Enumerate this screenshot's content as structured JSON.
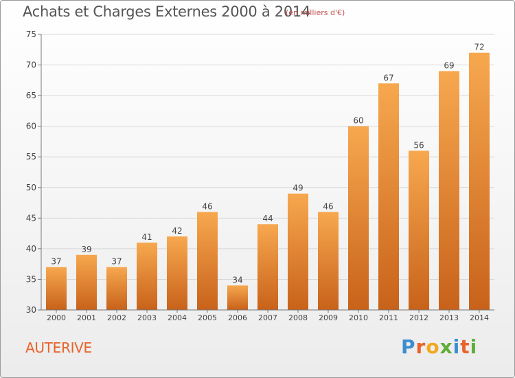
{
  "header": {
    "title": "Achats et Charges Externes 2000 à 2014",
    "subtitle": "(en milliers d'€)"
  },
  "footer": {
    "place": "AUTERIVE",
    "brand": "Proxiti"
  },
  "colors": {
    "bar_light": "#f7a84f",
    "bar_dark": "#c8621a",
    "grid": "#d6d6d6",
    "text": "#444444",
    "place": "#e8632a"
  },
  "chart_data": {
    "type": "bar",
    "categories": [
      "2000",
      "2001",
      "2002",
      "2003",
      "2004",
      "2005",
      "2006",
      "2007",
      "2008",
      "2009",
      "2010",
      "2011",
      "2012",
      "2013",
      "2014"
    ],
    "values": [
      37,
      39,
      37,
      41,
      42,
      46,
      34,
      44,
      49,
      46,
      60,
      67,
      56,
      69,
      72
    ],
    "ylim": [
      30,
      75
    ],
    "yticks": [
      30,
      35,
      40,
      45,
      50,
      55,
      60,
      65,
      70,
      75
    ],
    "grid": true,
    "xlabel": "",
    "ylabel": ""
  }
}
